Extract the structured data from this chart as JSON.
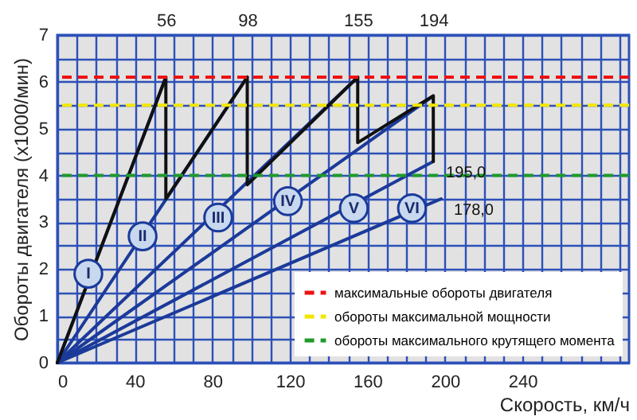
{
  "chart_data": {
    "type": "line",
    "xlabel": "Скорость, км/ч",
    "ylabel": "Обороты двигателя (x1000/мин)",
    "xlim": [
      0,
      295
    ],
    "xticks": [
      0,
      {
        "value": 10,
        "label": null
      },
      {
        "value": 20,
        "label": null
      },
      {
        "value": 30,
        "label": null
      },
      40,
      {
        "value": 50,
        "label": null
      },
      {
        "value": 60,
        "label": null
      },
      {
        "value": 70,
        "label": null
      },
      80,
      {
        "value": 90,
        "label": null
      },
      {
        "value": 100,
        "label": null
      },
      {
        "value": 110,
        "label": null
      },
      120,
      {
        "value": 130,
        "label": null
      },
      {
        "value": 140,
        "label": null
      },
      {
        "value": 150,
        "label": null
      },
      160,
      {
        "value": 170,
        "label": null
      },
      {
        "value": 180,
        "label": null
      },
      {
        "value": 190,
        "label": null
      },
      200,
      {
        "value": 210,
        "label": null
      },
      {
        "value": 220,
        "label": null
      },
      {
        "value": 230,
        "label": null
      },
      240,
      {
        "value": 250,
        "label": null
      },
      {
        "value": 260,
        "label": null
      },
      {
        "value": 270,
        "label": null
      },
      {
        "value": 280,
        "label": null
      },
      {
        "value": 290,
        "label": null
      }
    ],
    "x2lim": [
      0,
      295
    ],
    "x2ticks": [
      56,
      98,
      155,
      194
    ],
    "ylim": [
      0,
      7
    ],
    "yticks": [
      0,
      {
        "value": 0.5,
        "label": null
      },
      1,
      {
        "value": 1.5,
        "label": null
      },
      2,
      {
        "value": 2.5,
        "label": null
      },
      3,
      {
        "value": 3.5,
        "label": null
      },
      4,
      {
        "value": 4.5,
        "label": null
      },
      5,
      {
        "value": 5.5,
        "label": null
      },
      6,
      {
        "value": 6.5,
        "label": null
      },
      7
    ],
    "grid": true,
    "legend": "bottom right",
    "series": [
      {
        "color": "#1b3a9a",
        "x": [
          0,
          56
        ],
        "values": [
          0,
          6.1
        ]
      },
      {
        "color": "#1b3a9a",
        "x": [
          0,
          98
        ],
        "values": [
          0,
          6.1
        ]
      },
      {
        "color": "#1b3a9a",
        "x": [
          0,
          155
        ],
        "values": [
          0,
          6.1
        ]
      },
      {
        "color": "#1b3a9a",
        "x": [
          0,
          194
        ],
        "values": [
          0,
          5.7
        ]
      },
      {
        "color": "#1b3a9a",
        "x": [
          0,
          194
        ],
        "values": [
          0,
          4.3
        ]
      },
      {
        "color": "#1b3a9a",
        "x": [
          0,
          198
        ],
        "values": [
          0,
          3.5
        ]
      },
      {
        "color": "#111111",
        "x": [
          0,
          56,
          56,
          98,
          98,
          155,
          155,
          194,
          194
        ],
        "values": [
          0,
          6.1,
          3.5,
          6.1,
          3.8,
          6.1,
          4.7,
          5.7,
          4.3
        ]
      }
    ],
    "ref_lines": [
      {
        "axis": "y",
        "value": 6.1,
        "label": "максимальные обороты двигателя",
        "color": "#ee1111",
        "line_style": "dashed"
      },
      {
        "axis": "y",
        "value": 5.5,
        "label": "обороты максимальной мощности",
        "color": "#f2e600",
        "line_style": "dashed"
      },
      {
        "axis": "y",
        "value": 4,
        "label": "обороты максимального крутящего момента",
        "color": "#1f9a2a",
        "line_style": "dashed"
      }
    ],
    "annotations": [
      {
        "text": "I",
        "x": 16,
        "y": 1.9
      },
      {
        "text": "II",
        "x": 44,
        "y": 2.7
      },
      {
        "text": "III",
        "x": 83,
        "y": 3.1
      },
      {
        "text": "IV",
        "x": 119,
        "y": 3.45
      },
      {
        "text": "V",
        "x": 153,
        "y": 3.3
      },
      {
        "text": "VI",
        "x": 183,
        "y": 3.3
      },
      {
        "text": "195,0",
        "x": 194,
        "y": 4.3
      },
      {
        "text": "178,0",
        "x": 198,
        "y": 3.5
      }
    ]
  }
}
